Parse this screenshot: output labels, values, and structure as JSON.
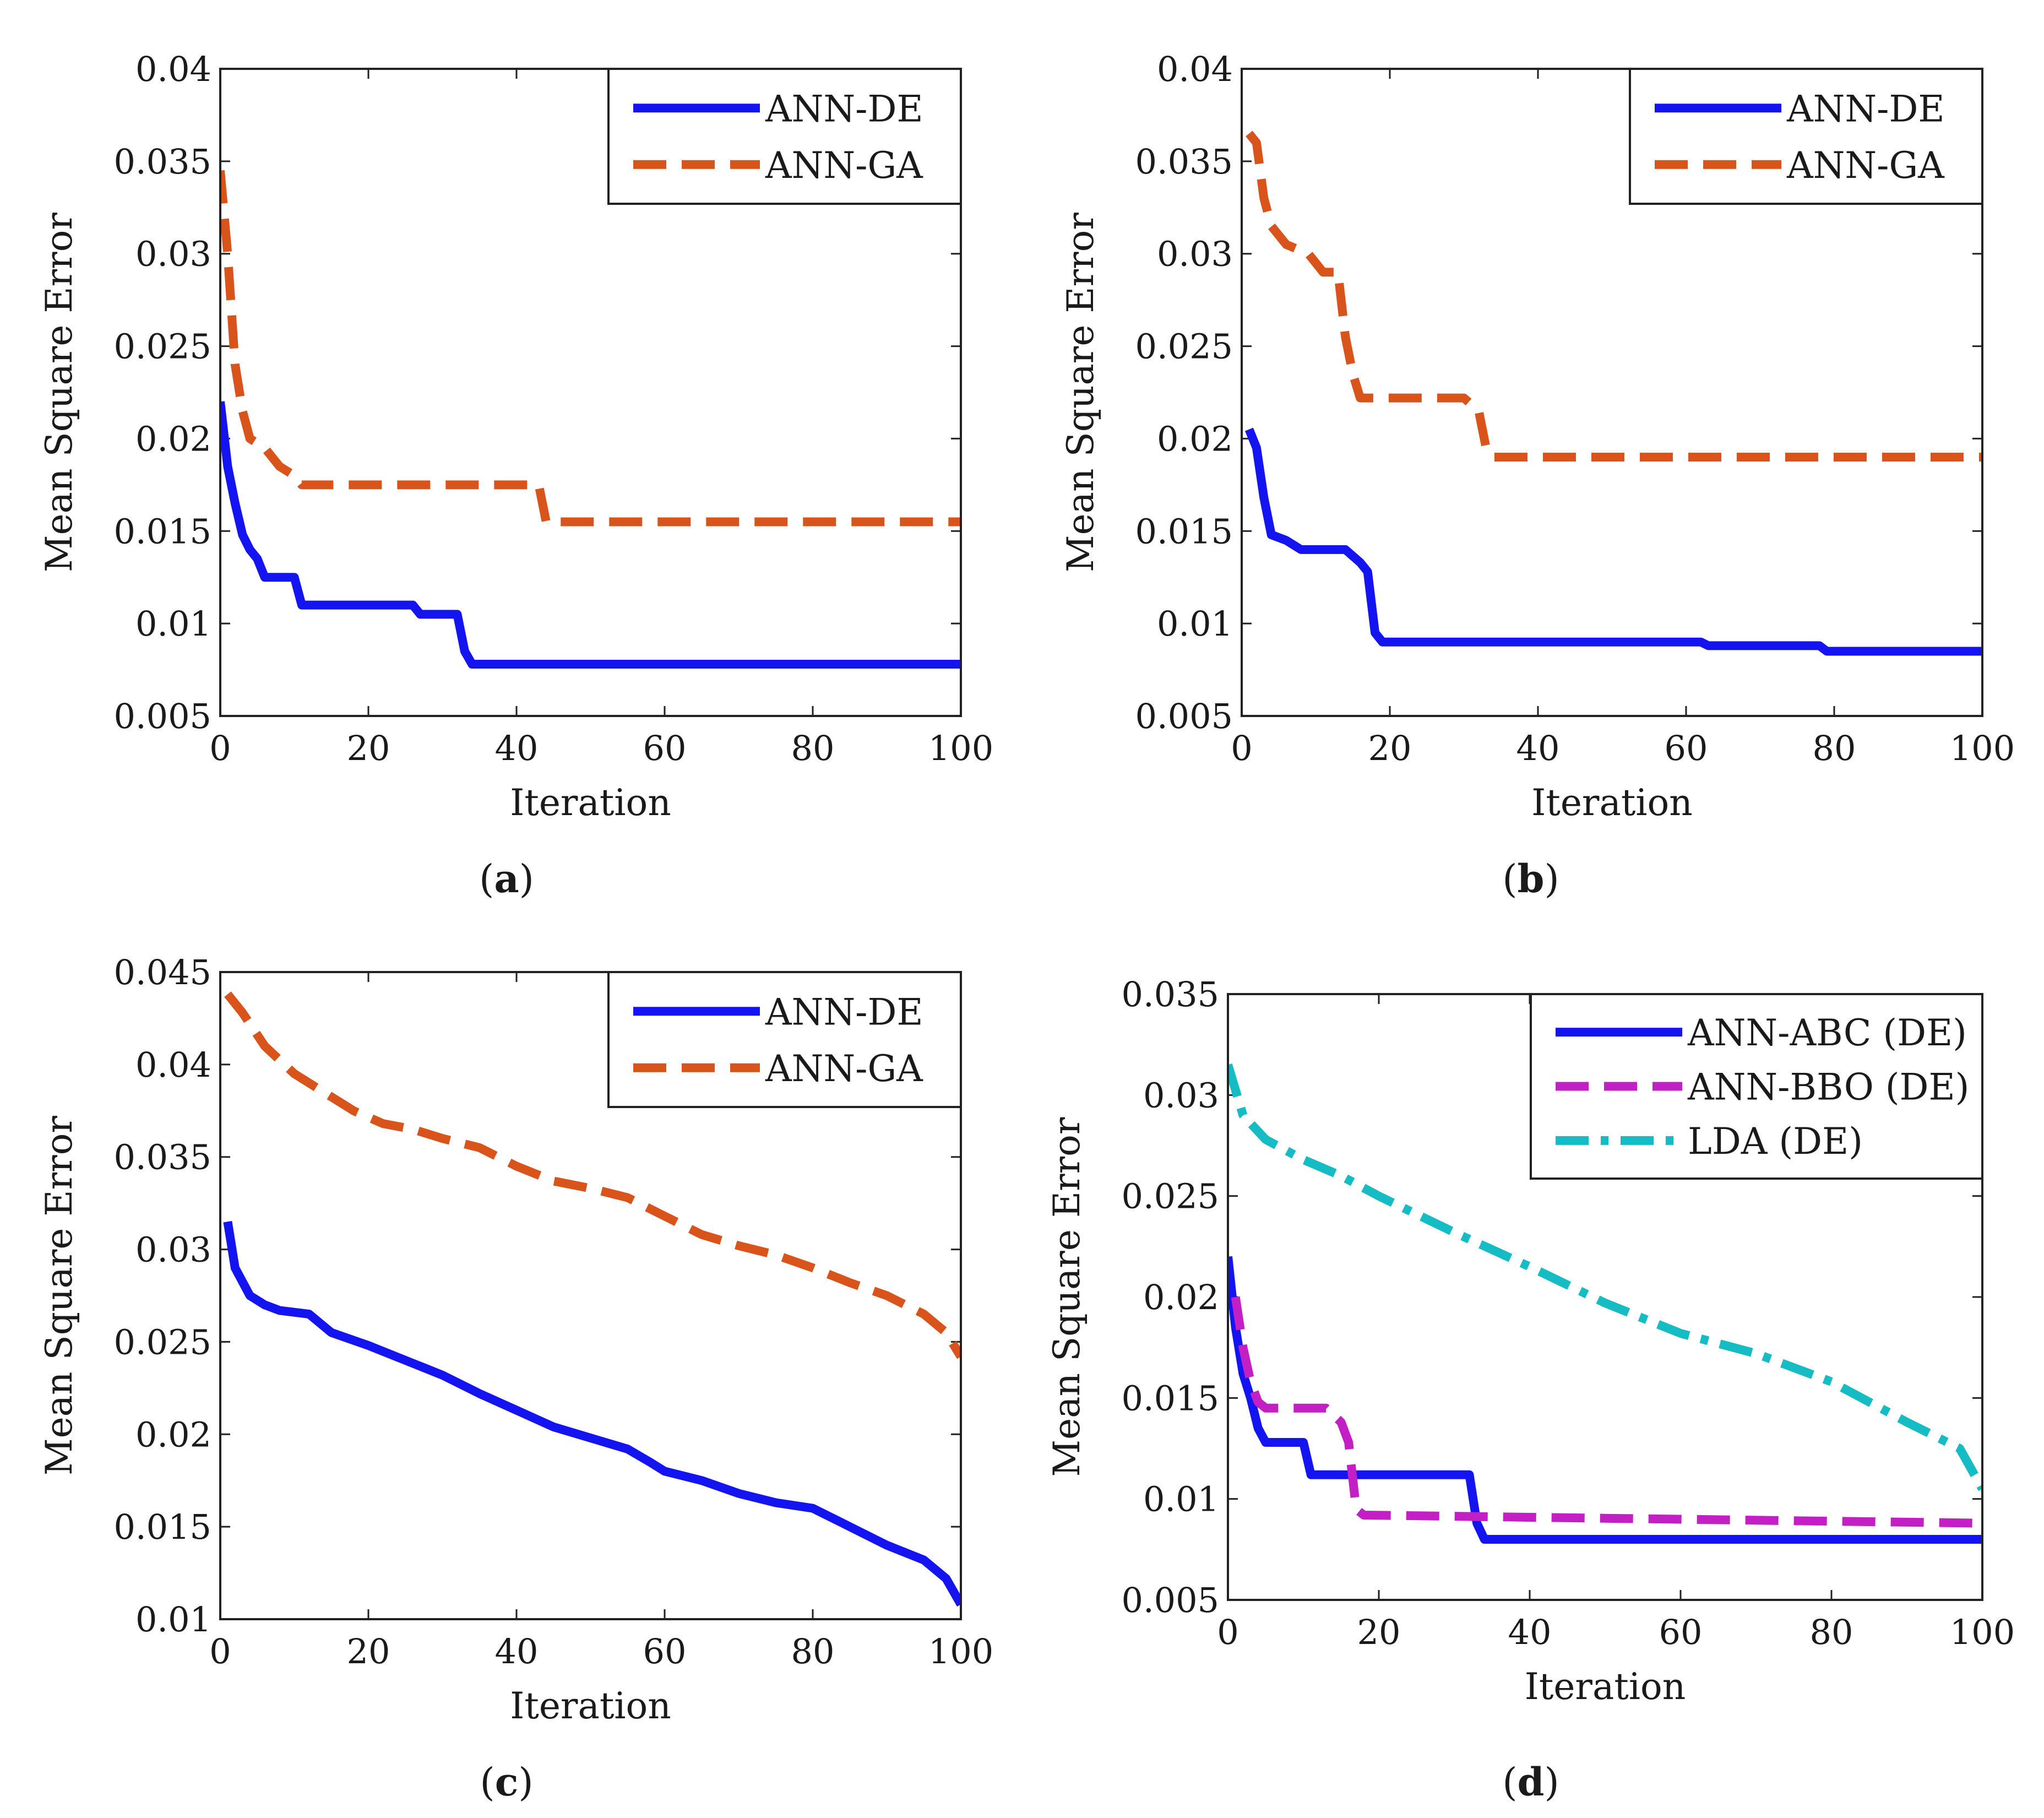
{
  "figure": {
    "panels": [
      {
        "label_open": "(",
        "label_letter": "a",
        "label_close": ")"
      },
      {
        "label_open": "(",
        "label_letter": "b",
        "label_close": ")"
      },
      {
        "label_open": "(",
        "label_letter": "c",
        "label_close": ")"
      },
      {
        "label_open": "(",
        "label_letter": "d",
        "label_close": ")"
      }
    ]
  },
  "chart_data": [
    {
      "type": "line",
      "panel": "a",
      "xlabel": "Iteration",
      "ylabel": "Mean Square Error",
      "xlim": [
        0,
        100
      ],
      "ylim": [
        0.005,
        0.04
      ],
      "xticks": [
        "0",
        "20",
        "40",
        "60",
        "80",
        "100"
      ],
      "yticks": [
        "0.005",
        "0.01",
        "0.015",
        "0.02",
        "0.025",
        "0.03",
        "0.035",
        "0.04"
      ],
      "legend_position": "top-right",
      "series": [
        {
          "name": "ANN-DE",
          "color": "#1414f0",
          "style": "solid",
          "points": [
            [
              0,
              0.022
            ],
            [
              1,
              0.0185
            ],
            [
              2,
              0.0165
            ],
            [
              3,
              0.0148
            ],
            [
              4,
              0.014
            ],
            [
              5,
              0.0135
            ],
            [
              6,
              0.0125
            ],
            [
              10,
              0.0125
            ],
            [
              11,
              0.011
            ],
            [
              26,
              0.011
            ],
            [
              27,
              0.0105
            ],
            [
              32,
              0.0105
            ],
            [
              33,
              0.0085
            ],
            [
              34,
              0.0078
            ],
            [
              100,
              0.0078
            ]
          ]
        },
        {
          "name": "ANN-GA",
          "color": "#d9541a",
          "style": "dashed",
          "points": [
            [
              0,
              0.0345
            ],
            [
              1,
              0.03
            ],
            [
              2,
              0.024
            ],
            [
              3,
              0.0215
            ],
            [
              4,
              0.02
            ],
            [
              6,
              0.0195
            ],
            [
              8,
              0.0185
            ],
            [
              10,
              0.018
            ],
            [
              11,
              0.0175
            ],
            [
              43,
              0.0175
            ],
            [
              44,
              0.0155
            ],
            [
              100,
              0.0155
            ]
          ]
        }
      ]
    },
    {
      "type": "line",
      "panel": "b",
      "xlabel": "Iteration",
      "ylabel": "Mean Square Error",
      "xlim": [
        0,
        100
      ],
      "ylim": [
        0.005,
        0.04
      ],
      "xticks": [
        "0",
        "20",
        "40",
        "60",
        "80",
        "100"
      ],
      "yticks": [
        "0.005",
        "0.01",
        "0.015",
        "0.02",
        "0.025",
        "0.03",
        "0.035",
        "0.04"
      ],
      "legend_position": "top-right",
      "series": [
        {
          "name": "ANN-DE",
          "color": "#1414f0",
          "style": "solid",
          "points": [
            [
              1,
              0.0205
            ],
            [
              2,
              0.0195
            ],
            [
              3,
              0.0168
            ],
            [
              4,
              0.0148
            ],
            [
              6,
              0.0145
            ],
            [
              8,
              0.014
            ],
            [
              14,
              0.014
            ],
            [
              16,
              0.0133
            ],
            [
              17,
              0.0128
            ],
            [
              18,
              0.0095
            ],
            [
              19,
              0.009
            ],
            [
              62,
              0.009
            ],
            [
              63,
              0.0088
            ],
            [
              78,
              0.0088
            ],
            [
              79,
              0.0085
            ],
            [
              100,
              0.0085
            ]
          ]
        },
        {
          "name": "ANN-GA",
          "color": "#d9541a",
          "style": "dashed",
          "points": [
            [
              1,
              0.0365
            ],
            [
              2,
              0.036
            ],
            [
              3,
              0.033
            ],
            [
              4,
              0.0315
            ],
            [
              6,
              0.0305
            ],
            [
              9,
              0.03
            ],
            [
              10,
              0.0295
            ],
            [
              11,
              0.029
            ],
            [
              13,
              0.029
            ],
            [
              14,
              0.0255
            ],
            [
              15,
              0.0235
            ],
            [
              16,
              0.0222
            ],
            [
              30,
              0.0222
            ],
            [
              32,
              0.0215
            ],
            [
              33,
              0.0195
            ],
            [
              34,
              0.019
            ],
            [
              100,
              0.019
            ]
          ]
        }
      ]
    },
    {
      "type": "line",
      "panel": "c",
      "xlabel": "Iteration",
      "ylabel": "Mean Square Error",
      "xlim": [
        0,
        100
      ],
      "ylim": [
        0.01,
        0.045
      ],
      "xticks": [
        "0",
        "20",
        "40",
        "60",
        "80",
        "100"
      ],
      "yticks": [
        "0.01",
        "0.015",
        "0.02",
        "0.025",
        "0.03",
        "0.035",
        "0.04",
        "0.045"
      ],
      "legend_position": "top-right",
      "series": [
        {
          "name": "ANN-DE",
          "color": "#1414f0",
          "style": "solid",
          "points": [
            [
              1,
              0.0315
            ],
            [
              2,
              0.029
            ],
            [
              4,
              0.0275
            ],
            [
              6,
              0.027
            ],
            [
              8,
              0.0267
            ],
            [
              12,
              0.0265
            ],
            [
              15,
              0.0255
            ],
            [
              20,
              0.0248
            ],
            [
              25,
              0.024
            ],
            [
              30,
              0.0232
            ],
            [
              35,
              0.0222
            ],
            [
              40,
              0.0213
            ],
            [
              45,
              0.0204
            ],
            [
              50,
              0.0198
            ],
            [
              55,
              0.0192
            ],
            [
              58,
              0.0185
            ],
            [
              60,
              0.018
            ],
            [
              65,
              0.0175
            ],
            [
              70,
              0.0168
            ],
            [
              75,
              0.0163
            ],
            [
              80,
              0.016
            ],
            [
              85,
              0.015
            ],
            [
              90,
              0.014
            ],
            [
              95,
              0.0132
            ],
            [
              98,
              0.0122
            ],
            [
              100,
              0.0108
            ]
          ]
        },
        {
          "name": "ANN-GA",
          "color": "#d9541a",
          "style": "dashed",
          "points": [
            [
              1,
              0.0438
            ],
            [
              3,
              0.0428
            ],
            [
              6,
              0.041
            ],
            [
              10,
              0.0395
            ],
            [
              14,
              0.0385
            ],
            [
              18,
              0.0375
            ],
            [
              22,
              0.0368
            ],
            [
              26,
              0.0365
            ],
            [
              30,
              0.036
            ],
            [
              35,
              0.0355
            ],
            [
              40,
              0.0345
            ],
            [
              45,
              0.0337
            ],
            [
              50,
              0.0333
            ],
            [
              55,
              0.0328
            ],
            [
              60,
              0.0318
            ],
            [
              65,
              0.0308
            ],
            [
              70,
              0.0302
            ],
            [
              75,
              0.0297
            ],
            [
              80,
              0.029
            ],
            [
              85,
              0.0282
            ],
            [
              90,
              0.0275
            ],
            [
              95,
              0.0265
            ],
            [
              98,
              0.0255
            ],
            [
              100,
              0.0242
            ]
          ]
        }
      ]
    },
    {
      "type": "line",
      "panel": "d",
      "xlabel": "Iteration",
      "ylabel": "Mean Square Error",
      "xlim": [
        0,
        100
      ],
      "ylim": [
        0.005,
        0.035
      ],
      "xticks": [
        "0",
        "20",
        "40",
        "60",
        "80",
        "100"
      ],
      "yticks": [
        "0.005",
        "0.01",
        "0.015",
        "0.02",
        "0.025",
        "0.03",
        "0.035"
      ],
      "legend_position": "top-right",
      "series": [
        {
          "name": "ANN-ABC (DE)",
          "color": "#1414f0",
          "style": "solid",
          "points": [
            [
              0,
              0.022
            ],
            [
              1,
              0.0185
            ],
            [
              2,
              0.0162
            ],
            [
              3,
              0.015
            ],
            [
              4,
              0.0135
            ],
            [
              5,
              0.0128
            ],
            [
              10,
              0.0128
            ],
            [
              11,
              0.0112
            ],
            [
              32,
              0.0112
            ],
            [
              33,
              0.0088
            ],
            [
              34,
              0.008
            ],
            [
              100,
              0.008
            ]
          ]
        },
        {
          "name": "ANN-BBO (DE)",
          "color": "#c21fc4",
          "style": "dashed",
          "points": [
            [
              1,
              0.02
            ],
            [
              2,
              0.0175
            ],
            [
              3,
              0.0158
            ],
            [
              4,
              0.0148
            ],
            [
              5,
              0.0145
            ],
            [
              13,
              0.0145
            ],
            [
              15,
              0.0138
            ],
            [
              16,
              0.0128
            ],
            [
              17,
              0.0095
            ],
            [
              18,
              0.0092
            ],
            [
              100,
              0.0088
            ]
          ]
        },
        {
          "name": "LDA (DE)",
          "color": "#15bcc4",
          "style": "dashdot",
          "points": [
            [
              0,
              0.0315
            ],
            [
              2,
              0.029
            ],
            [
              5,
              0.0278
            ],
            [
              10,
              0.0268
            ],
            [
              15,
              0.026
            ],
            [
              20,
              0.025
            ],
            [
              30,
              0.0232
            ],
            [
              40,
              0.0215
            ],
            [
              50,
              0.0197
            ],
            [
              60,
              0.0182
            ],
            [
              70,
              0.0172
            ],
            [
              80,
              0.0158
            ],
            [
              90,
              0.0138
            ],
            [
              97,
              0.0125
            ],
            [
              100,
              0.0105
            ]
          ]
        }
      ]
    }
  ]
}
